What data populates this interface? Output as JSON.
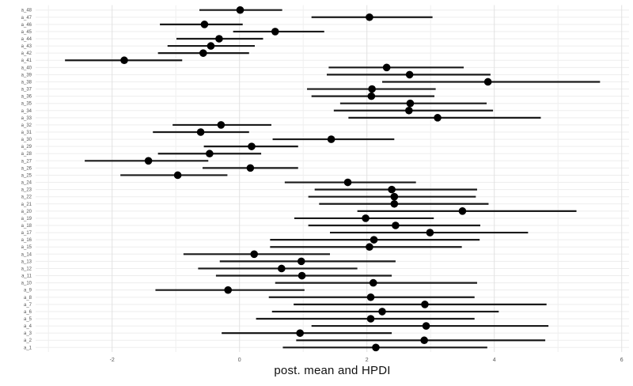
{
  "figure": {
    "kind": "forest-plot",
    "background": "#ffffff"
  },
  "axis": {
    "xlabel": "post. mean and HPDI"
  },
  "colors": {
    "point": "#000000",
    "interval_line": "#1a1a1a",
    "grid_major": "#e2e2e2",
    "grid_minor": "#f0f0f0",
    "row_grid": "#ededed",
    "tick_label": "#555555",
    "axis_title": "#111111"
  },
  "chart_data": {
    "type": "pointrange",
    "subtype": "forest / posterior interval plot",
    "orientation": "horizontal",
    "title": "",
    "xlabel": "post. mean and HPDI",
    "ylabel": "",
    "x_ticks": [
      -2,
      0,
      2,
      4,
      6
    ],
    "x_gridlines": [
      -3,
      -2,
      -1,
      0,
      1,
      2,
      3,
      4,
      5,
      6
    ],
    "xlim": [
      -3.2,
      6.15
    ],
    "grid": "both",
    "legend": "none",
    "row_order": "top-to-bottom",
    "rows": [
      {
        "label": "a_48",
        "mean": 0.01,
        "lo": -0.63,
        "hi": 0.67
      },
      {
        "label": "a_47",
        "mean": 2.04,
        "lo": 1.13,
        "hi": 3.03
      },
      {
        "label": "a_46",
        "mean": -0.55,
        "lo": -1.25,
        "hi": 0.05
      },
      {
        "label": "a_45",
        "mean": 0.56,
        "lo": -0.1,
        "hi": 1.33
      },
      {
        "label": "a_44",
        "mean": -0.32,
        "lo": -0.99,
        "hi": 0.37
      },
      {
        "label": "a_43",
        "mean": -0.45,
        "lo": -1.13,
        "hi": 0.24
      },
      {
        "label": "a_42",
        "mean": -0.57,
        "lo": -1.28,
        "hi": 0.15
      },
      {
        "label": "a_41",
        "mean": -1.81,
        "lo": -2.74,
        "hi": -0.9
      },
      {
        "label": "a_40",
        "mean": 2.31,
        "lo": 1.4,
        "hi": 3.52
      },
      {
        "label": "a_39",
        "mean": 2.67,
        "lo": 1.37,
        "hi": 3.94
      },
      {
        "label": "a_38",
        "mean": 3.9,
        "lo": 2.24,
        "hi": 5.66
      },
      {
        "label": "a_37",
        "mean": 2.08,
        "lo": 1.06,
        "hi": 3.08
      },
      {
        "label": "a_36",
        "mean": 2.07,
        "lo": 1.13,
        "hi": 3.06
      },
      {
        "label": "a_35",
        "mean": 2.68,
        "lo": 1.58,
        "hi": 3.88
      },
      {
        "label": "a_34",
        "mean": 2.66,
        "lo": 1.48,
        "hi": 3.98
      },
      {
        "label": "a_33",
        "mean": 3.11,
        "lo": 1.71,
        "hi": 4.73
      },
      {
        "label": "a_32",
        "mean": -0.29,
        "lo": -1.05,
        "hi": 0.5
      },
      {
        "label": "a_31",
        "mean": -0.61,
        "lo": -1.36,
        "hi": 0.15
      },
      {
        "label": "a_30",
        "mean": 1.44,
        "lo": 0.52,
        "hi": 2.43
      },
      {
        "label": "a_29",
        "mean": 0.19,
        "lo": -0.56,
        "hi": 0.92
      },
      {
        "label": "a_28",
        "mean": -0.47,
        "lo": -1.28,
        "hi": 0.34
      },
      {
        "label": "a_27",
        "mean": -1.43,
        "lo": -2.43,
        "hi": -0.49
      },
      {
        "label": "a_26",
        "mean": 0.17,
        "lo": -0.58,
        "hi": 0.92
      },
      {
        "label": "a_25",
        "mean": -0.97,
        "lo": -1.87,
        "hi": -0.19
      },
      {
        "label": "a_24",
        "mean": 1.7,
        "lo": 0.71,
        "hi": 2.77
      },
      {
        "label": "a_23",
        "mean": 2.39,
        "lo": 1.18,
        "hi": 3.73
      },
      {
        "label": "a_22",
        "mean": 2.43,
        "lo": 1.08,
        "hi": 3.71
      },
      {
        "label": "a_21",
        "mean": 2.43,
        "lo": 1.25,
        "hi": 3.91
      },
      {
        "label": "a_20",
        "mean": 3.5,
        "lo": 1.85,
        "hi": 5.29
      },
      {
        "label": "a_19",
        "mean": 1.98,
        "lo": 0.86,
        "hi": 3.05
      },
      {
        "label": "a_18",
        "mean": 2.45,
        "lo": 1.08,
        "hi": 3.78
      },
      {
        "label": "a_17",
        "mean": 2.99,
        "lo": 1.42,
        "hi": 4.53
      },
      {
        "label": "a_16",
        "mean": 2.11,
        "lo": 0.48,
        "hi": 3.77
      },
      {
        "label": "a_15",
        "mean": 2.04,
        "lo": 0.48,
        "hi": 3.49
      },
      {
        "label": "a_14",
        "mean": 0.23,
        "lo": -0.88,
        "hi": 1.42
      },
      {
        "label": "a_13",
        "mean": 0.97,
        "lo": -0.31,
        "hi": 2.45
      },
      {
        "label": "a_12",
        "mean": 0.66,
        "lo": -0.65,
        "hi": 1.85
      },
      {
        "label": "a_11",
        "mean": 0.98,
        "lo": -0.37,
        "hi": 2.39
      },
      {
        "label": "a_10",
        "mean": 2.1,
        "lo": 0.56,
        "hi": 3.73
      },
      {
        "label": "a_9",
        "mean": -0.18,
        "lo": -1.32,
        "hi": 1.02
      },
      {
        "label": "a_8",
        "mean": 2.06,
        "lo": 0.46,
        "hi": 3.69
      },
      {
        "label": "a_7",
        "mean": 2.91,
        "lo": 0.85,
        "hi": 4.82
      },
      {
        "label": "a_6",
        "mean": 2.24,
        "lo": 0.51,
        "hi": 4.07
      },
      {
        "label": "a_5",
        "mean": 2.06,
        "lo": 0.26,
        "hi": 3.69
      },
      {
        "label": "a_4",
        "mean": 2.93,
        "lo": 1.13,
        "hi": 4.85
      },
      {
        "label": "a_3",
        "mean": 0.95,
        "lo": -0.28,
        "hi": 2.39
      },
      {
        "label": "a_2",
        "mean": 2.9,
        "lo": 0.89,
        "hi": 4.8
      },
      {
        "label": "a_1",
        "mean": 2.14,
        "lo": 0.68,
        "hi": 3.89
      }
    ]
  }
}
